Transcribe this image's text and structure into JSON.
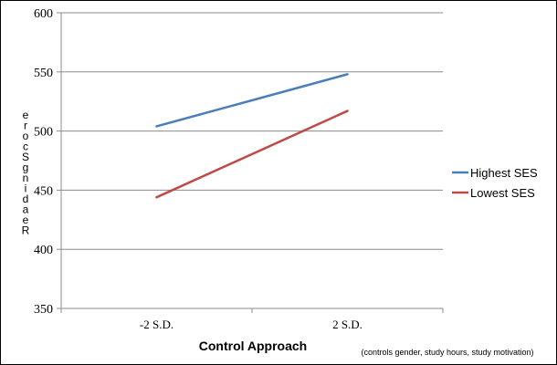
{
  "chart_data": {
    "type": "line",
    "title": "",
    "xlabel": "Control Approach",
    "ylabel": "Reading Score",
    "categories": [
      "-2 S.D.",
      "2 S.D."
    ],
    "ylim": [
      350,
      600
    ],
    "yticks": [
      350,
      400,
      450,
      500,
      550,
      600
    ],
    "grid": true,
    "legend_position": "right",
    "series": [
      {
        "name": "Highest SES",
        "values": [
          504,
          548
        ],
        "color": "#4a7ebb"
      },
      {
        "name": "Lowest SES",
        "values": [
          444,
          517
        ],
        "color": "#be4b48"
      }
    ],
    "note": "(controls gender, study hours, study motivation)"
  }
}
